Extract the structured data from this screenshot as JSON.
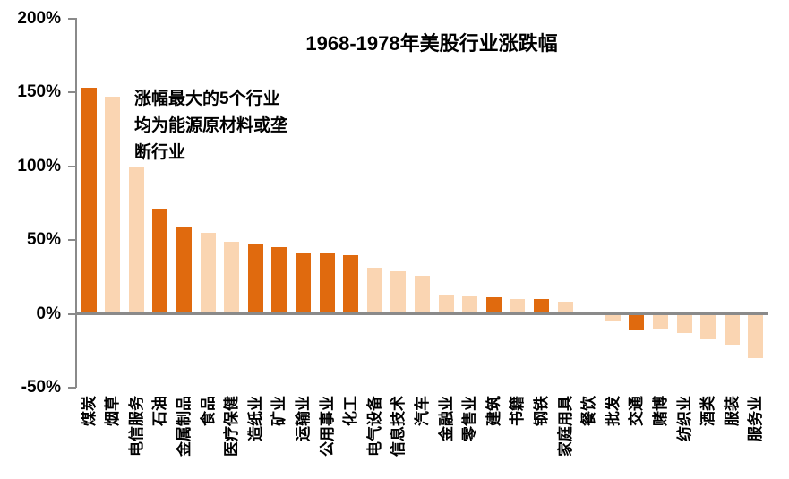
{
  "chart_data": {
    "type": "bar",
    "title": "1968-1978年美股行业涨跌幅",
    "annotation": "涨幅最大的5个行业\n均为能源原材料或垄\n断行业",
    "xlabel": "",
    "ylabel": "",
    "unit": "%",
    "ylim": [
      -50,
      200
    ],
    "grid": false,
    "legend": "none",
    "yticks": [
      {
        "value": 200,
        "label": "200%"
      },
      {
        "value": 150,
        "label": "150%"
      },
      {
        "value": 100,
        "label": "100%"
      },
      {
        "value": 50,
        "label": "50%"
      },
      {
        "value": 0,
        "label": "0%"
      },
      {
        "value": -50,
        "label": "-50%"
      }
    ],
    "categories": [
      "煤炭",
      "烟草",
      "电信服务",
      "石油",
      "金属制品",
      "食品",
      "医疗保健",
      "造纸业",
      "矿业",
      "运输业",
      "公用事业",
      "化工",
      "电气设备",
      "信息技术",
      "汽车",
      "金融业",
      "零售业",
      "建筑",
      "书籍",
      "钢铁",
      "家庭用具",
      "餐饮",
      "批发",
      "交通",
      "赌博",
      "纺织业",
      "酒类",
      "服装",
      "服务业"
    ],
    "values": [
      153,
      147,
      100,
      71,
      59,
      55,
      49,
      47,
      45,
      41,
      41,
      40,
      31,
      29,
      26,
      13,
      12,
      11,
      10,
      10,
      8,
      0,
      -5,
      -11,
      -10,
      -13,
      -17,
      -21,
      -30
    ],
    "emphasis": [
      true,
      false,
      false,
      true,
      true,
      false,
      false,
      true,
      true,
      true,
      true,
      true,
      false,
      false,
      false,
      false,
      false,
      true,
      false,
      true,
      false,
      false,
      false,
      true,
      false,
      false,
      false,
      false,
      false
    ],
    "colors": {
      "bar_emphasis": "#E06A0E",
      "bar_normal": "#FAD5B2",
      "axis": "#8A8A8A",
      "text": "#000000"
    }
  }
}
